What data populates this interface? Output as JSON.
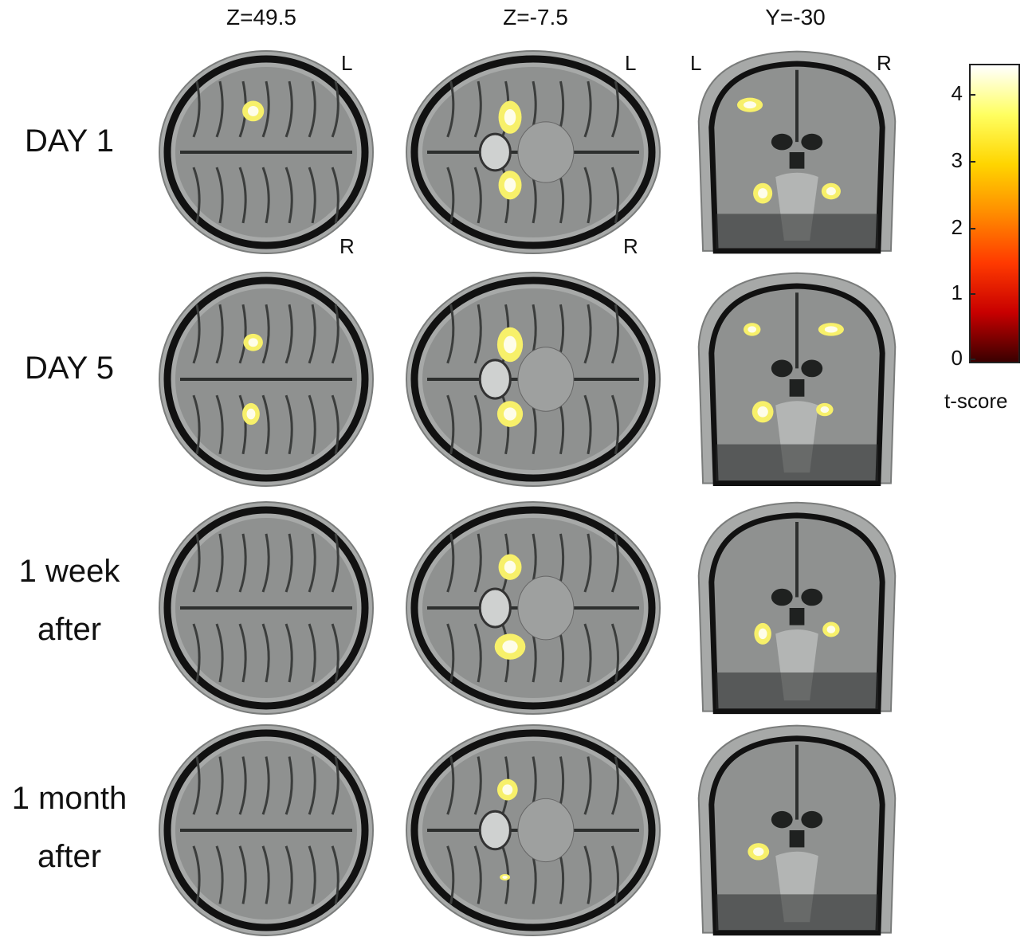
{
  "figure": {
    "columns": [
      {
        "id": "axial-superior",
        "header": "Z=49.5",
        "view": "axial"
      },
      {
        "id": "axial-inferior",
        "header": "Z=-7.5",
        "view": "axial"
      },
      {
        "id": "coronal",
        "header": "Y=-30",
        "view": "coronal"
      }
    ],
    "rows": [
      {
        "id": "day1",
        "label_lines": [
          "DAY 1"
        ]
      },
      {
        "id": "day5",
        "label_lines": [
          "DAY 5"
        ]
      },
      {
        "id": "week1",
        "label_lines": [
          "1 week",
          "after"
        ]
      },
      {
        "id": "month1",
        "label_lines": [
          "1 month",
          "after"
        ]
      }
    ],
    "orientation_labels": {
      "axial_top": "L",
      "axial_bottom": "R",
      "coronal_left": "L",
      "coronal_right": "R"
    },
    "colorbar": {
      "label": "t-score",
      "ticks": [
        "4",
        "3",
        "2",
        "1",
        "0"
      ],
      "range": [
        0,
        4.5
      ],
      "colormap": "hot",
      "colors": [
        "#3a0000",
        "#c80000",
        "#ff3a00",
        "#ff8c00",
        "#ffd500",
        "#ffff60",
        "#ffffff"
      ]
    },
    "colors": {
      "background": "#ffffff",
      "brain_gray": "#8f9190",
      "skull_outline": "#111111",
      "activation": "#f7f06a",
      "activation_core": "#ffffff"
    }
  }
}
